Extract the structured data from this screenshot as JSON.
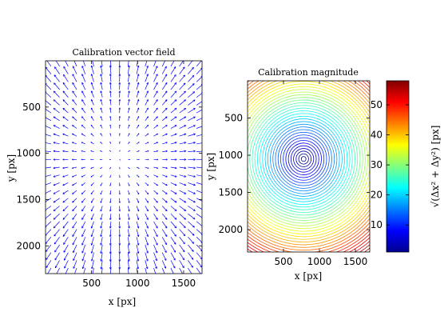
{
  "colors": {
    "quiver": "#0000ff",
    "axis": "#000000",
    "background": "#ffffff"
  },
  "chart_data": [
    {
      "type": "quiver",
      "title": "Calibration vector field",
      "xlabel": "x [px]",
      "ylabel": "y [px]",
      "xlim": [
        0,
        1700
      ],
      "ylim": [
        2300,
        0
      ],
      "y_reversed": true,
      "xticks": [
        "500",
        "1000",
        "1500"
      ],
      "yticks": [
        "500",
        "1000",
        "1500",
        "2000"
      ],
      "xtick_values": [
        500,
        1000,
        1500
      ],
      "ytick_values": [
        500,
        1000,
        1500,
        2000
      ],
      "center": [
        780,
        1050
      ],
      "description_values": {
        "grid_x_range": [
          60,
          1640
        ],
        "grid_y_range": [
          60,
          2240
        ]
      }
    },
    {
      "type": "contour",
      "title": "Calibration magnitude",
      "xlabel": "x [px]",
      "ylabel": "y [px]",
      "xlim": [
        0,
        1700
      ],
      "ylim": [
        2300,
        0
      ],
      "y_reversed": true,
      "xticks": [
        "500",
        "1000",
        "1500"
      ],
      "yticks": [
        "500",
        "1000",
        "1500",
        "2000"
      ],
      "xtick_values": [
        500,
        1000,
        1500
      ],
      "ytick_values": [
        500,
        1000,
        1500,
        2000
      ],
      "center": [
        780,
        1050
      ],
      "colormap": "jet",
      "colorbar": {
        "label": "√(Δx² + Δy²)  [px]",
        "range": [
          1,
          58
        ],
        "ticks": [
          "10",
          "20",
          "30",
          "40",
          "50"
        ],
        "tick_values": [
          10,
          20,
          30,
          40,
          50
        ]
      }
    }
  ]
}
